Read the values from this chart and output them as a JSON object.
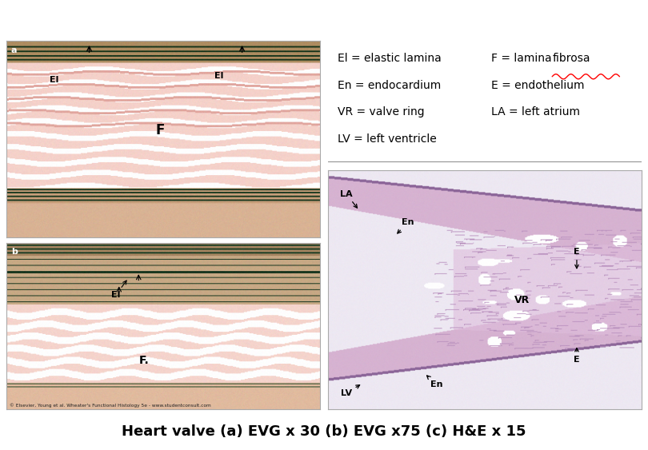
{
  "title": "Heart valve (a) EVG x 30 (b) EVG x75 (c) H&E x 15",
  "title_fontsize": 13,
  "title_fontweight": "bold",
  "background_color": "#ffffff",
  "legend_col1": [
    "El = elastic lamina",
    "En = endocardium",
    "VR = valve ring",
    "LV = left ventricle"
  ],
  "legend_col2_line1_prefix": "F = lamina ",
  "legend_col2_line1_underlined": "fibrosa",
  "legend_col2_line2": "E = endothelium",
  "legend_col2_line3": "LA = left atrium",
  "copyright_text": "© Elsevier, Young et al. Wheater's Functional Histology 5e - www.studentconsult.com",
  "legend_fontsize": 10,
  "divider_color": "#888888"
}
